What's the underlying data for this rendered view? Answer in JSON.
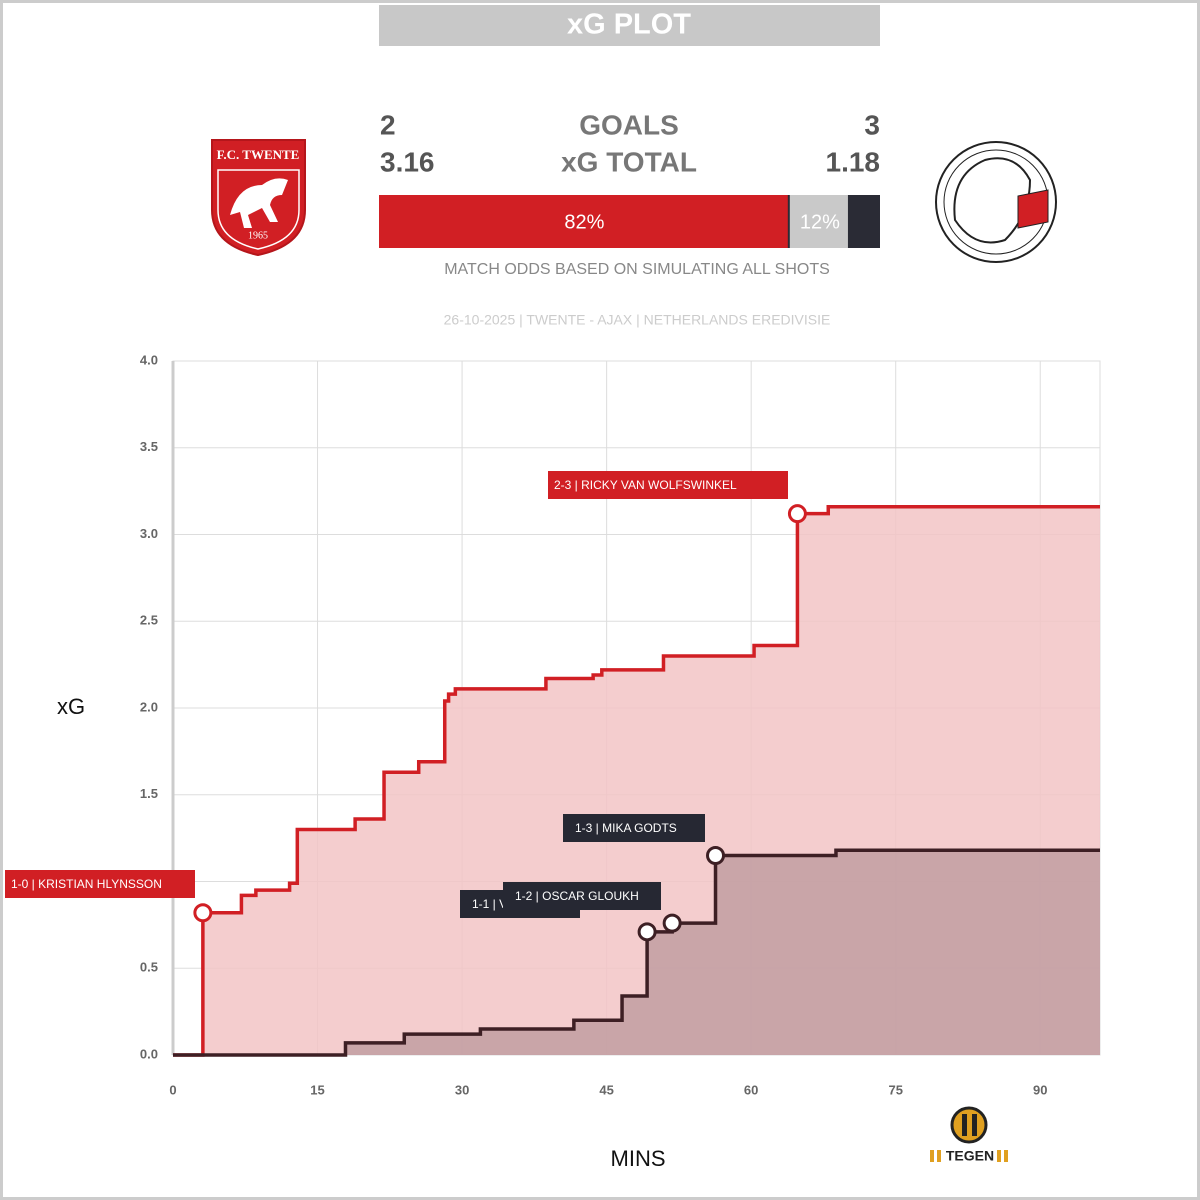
{
  "header": {
    "title": "xG PLOT",
    "home": {
      "goals": 2,
      "xg": 3.16,
      "logo_text": "F.C. TWENTE",
      "logo_year": "1965"
    },
    "away": {
      "goals": 3,
      "xg": 1.18
    },
    "goals_label": "GOALS",
    "xg_label": "xG TOTAL",
    "odds": [
      {
        "value": 82,
        "label": "82%",
        "color": "#d11f24"
      },
      {
        "value": 12,
        "label": "12%",
        "color": "#c9c9c9"
      }
    ],
    "odds_note": "MATCH ODDS BASED ON SIMULATING ALL SHOTS",
    "subtitle": "26-10-2025 | TWENTE - AJAX | NETHERLANDS EREDIVISIE",
    "brand": "TEGEN"
  },
  "chart_data": {
    "type": "step",
    "xlabel": "MINS",
    "ylabel": "xG",
    "xlim": [
      0,
      96.2
    ],
    "ylim": [
      0,
      4
    ],
    "xticks": [
      0,
      15,
      30,
      45,
      60,
      75,
      90
    ],
    "yticks": [
      {
        "value": 0,
        "label": "0.0"
      },
      0.5,
      {
        "value": 1,
        "label": "1.0"
      },
      1.5,
      {
        "value": 2,
        "label": "2.0"
      },
      2.5,
      {
        "value": 3,
        "label": "3.0"
      },
      3.5,
      {
        "value": 4,
        "label": "4.0"
      }
    ],
    "grid": true,
    "series": [
      {
        "name": "TWENTE",
        "color": "#d11f24",
        "fill": "#f2c4c5",
        "x": [
          0,
          3.1,
          7.1,
          8.6,
          12.1,
          12.9,
          18.9,
          21.9,
          25.5,
          28.2,
          28.6,
          29.3,
          38.7,
          43.6,
          44.5,
          50.9,
          60.3,
          64.8,
          68.0
        ],
        "values": [
          0,
          0.82,
          0.92,
          0.95,
          0.99,
          1.3,
          1.36,
          1.63,
          1.69,
          2.04,
          2.08,
          2.11,
          2.17,
          2.19,
          2.22,
          2.3,
          2.36,
          3.12,
          3.16
        ]
      },
      {
        "name": "AJAX",
        "color": "#3d1f24",
        "fill": "#c19da1",
        "x": [
          0,
          17.9,
          24.0,
          31.9,
          41.6,
          46.6,
          49.2,
          51.8,
          56.3,
          68.8
        ],
        "values": [
          0,
          0.07,
          0.12,
          0.15,
          0.2,
          0.34,
          0.71,
          0.76,
          1.15,
          1.18
        ]
      }
    ],
    "annotations": [
      {
        "text": "1-0 | KRISTIAN HLYNSSON",
        "x": 3.1,
        "y": 0.82,
        "series": 0
      },
      {
        "text": "2-3 | RICKY VAN WOLFSWINKEL",
        "x": 64.8,
        "y": 3.12,
        "series": 0
      },
      {
        "text": "1-1 | V",
        "x": 49.2,
        "y": 0.71,
        "series": 1
      },
      {
        "text": "1-2 | OSCAR GLOUKH",
        "x": 51.8,
        "y": 0.76,
        "series": 1
      },
      {
        "text": "1-3 | MIKA GODTS",
        "x": 56.3,
        "y": 1.15,
        "series": 1
      }
    ]
  }
}
